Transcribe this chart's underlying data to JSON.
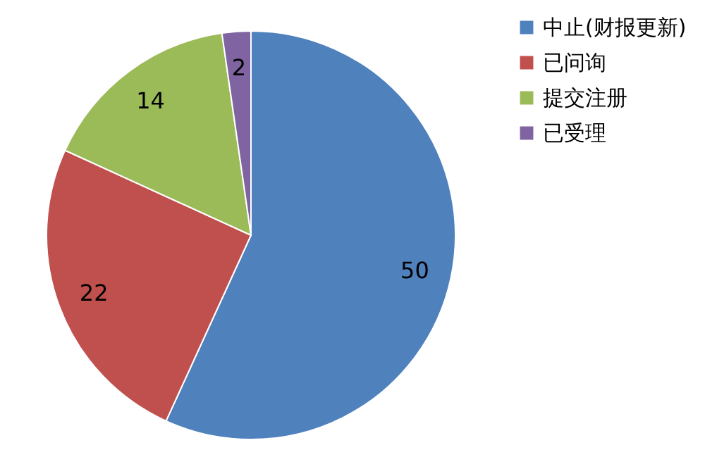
{
  "chart_data": {
    "type": "pie",
    "categories": [
      "中止(财报更新)",
      "已问询",
      "提交注册",
      "已受理"
    ],
    "values": [
      50,
      22,
      14,
      2
    ],
    "colors": [
      "#4f81bd",
      "#c0504d",
      "#9bbb59",
      "#8064a2"
    ],
    "data_labels": true,
    "legend": "right"
  }
}
